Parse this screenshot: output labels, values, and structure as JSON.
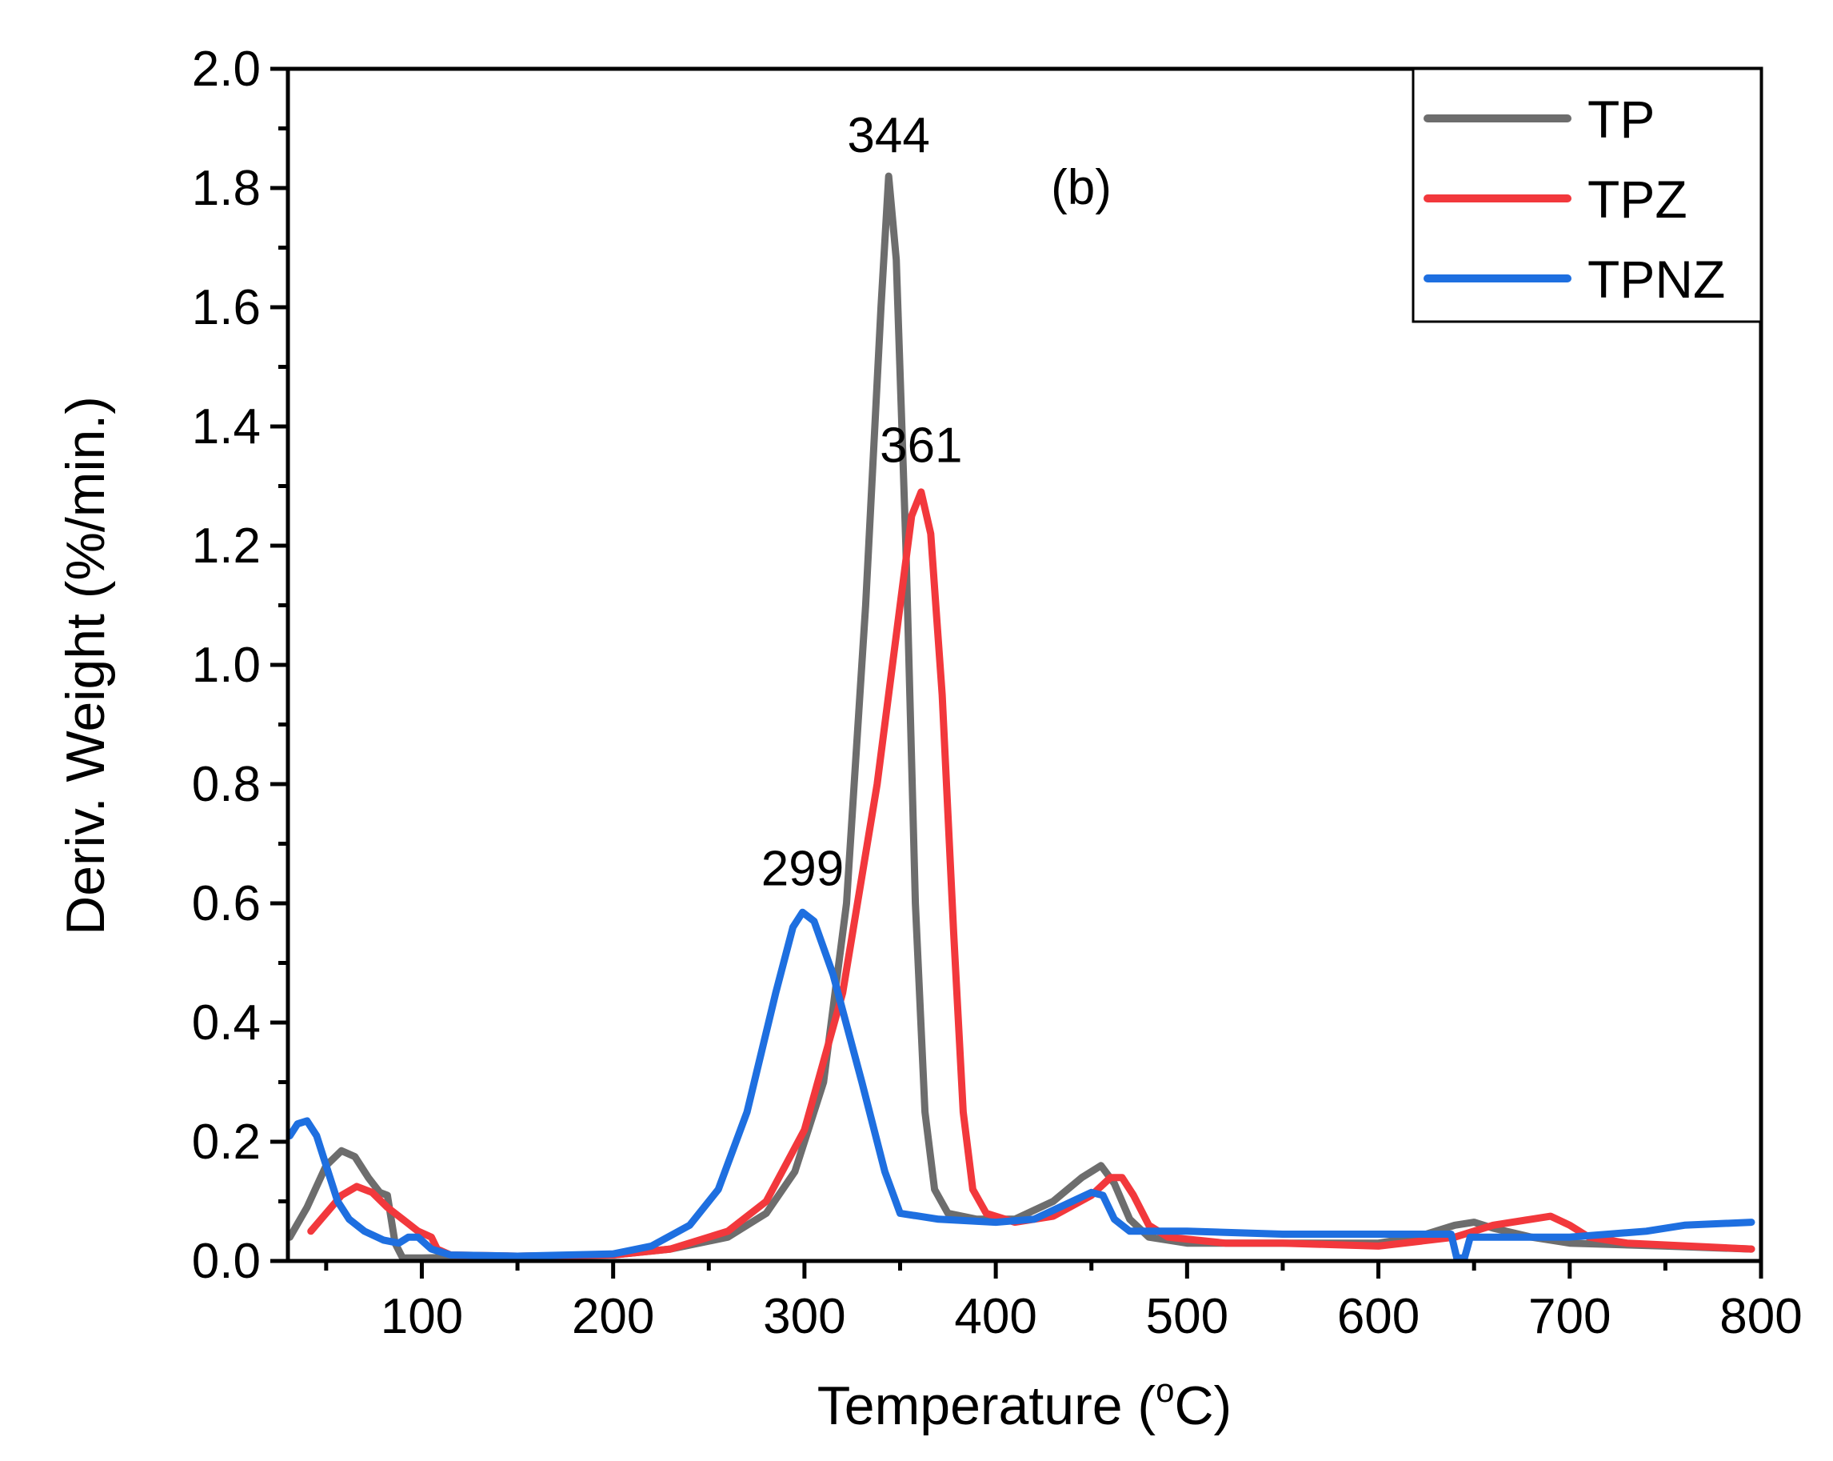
{
  "chart_data": {
    "type": "line",
    "panel_label": "(b)",
    "xlabel": "Temperature (",
    "xlabel_sup": "o",
    "xlabel_end": "C)",
    "ylabel": "Deriv. Weight (%/min.)",
    "xlim": [
      30,
      800
    ],
    "ylim": [
      0,
      2.0
    ],
    "x_ticks": [
      100,
      200,
      300,
      400,
      500,
      600,
      700,
      800
    ],
    "y_ticks": [
      0.0,
      0.2,
      0.4,
      0.6,
      0.8,
      1.0,
      1.2,
      1.4,
      1.6,
      1.8,
      2.0
    ],
    "x_tick_labels": [
      "100",
      "200",
      "300",
      "400",
      "500",
      "600",
      "700",
      "800"
    ],
    "y_tick_labels": [
      "0.0",
      "0.2",
      "0.4",
      "0.6",
      "0.8",
      "1.0",
      "1.2",
      "1.4",
      "1.6",
      "1.8",
      "2.0"
    ],
    "legend_position": "top-right",
    "series": [
      {
        "name": "TP",
        "color": "#6d6d6d",
        "points": [
          [
            31,
            0.04
          ],
          [
            40,
            0.09
          ],
          [
            50,
            0.16
          ],
          [
            58,
            0.185
          ],
          [
            65,
            0.175
          ],
          [
            72,
            0.14
          ],
          [
            78,
            0.115
          ],
          [
            82,
            0.11
          ],
          [
            86,
            0.03
          ],
          [
            90,
            0.005
          ],
          [
            100,
            0.005
          ],
          [
            150,
            0.008
          ],
          [
            200,
            0.01
          ],
          [
            230,
            0.02
          ],
          [
            260,
            0.04
          ],
          [
            280,
            0.08
          ],
          [
            295,
            0.15
          ],
          [
            310,
            0.3
          ],
          [
            322,
            0.6
          ],
          [
            332,
            1.1
          ],
          [
            340,
            1.6
          ],
          [
            344,
            1.82
          ],
          [
            348,
            1.68
          ],
          [
            353,
            1.2
          ],
          [
            358,
            0.6
          ],
          [
            363,
            0.25
          ],
          [
            368,
            0.12
          ],
          [
            375,
            0.08
          ],
          [
            390,
            0.07
          ],
          [
            410,
            0.07
          ],
          [
            430,
            0.1
          ],
          [
            445,
            0.14
          ],
          [
            455,
            0.16
          ],
          [
            462,
            0.13
          ],
          [
            470,
            0.07
          ],
          [
            480,
            0.04
          ],
          [
            500,
            0.03
          ],
          [
            550,
            0.03
          ],
          [
            600,
            0.03
          ],
          [
            620,
            0.04
          ],
          [
            640,
            0.06
          ],
          [
            650,
            0.065
          ],
          [
            660,
            0.055
          ],
          [
            680,
            0.04
          ],
          [
            700,
            0.03
          ],
          [
            750,
            0.025
          ],
          [
            795,
            0.02
          ]
        ]
      },
      {
        "name": "TPZ",
        "color": "#f2383c",
        "points": [
          [
            42,
            0.05
          ],
          [
            50,
            0.08
          ],
          [
            58,
            0.11
          ],
          [
            66,
            0.125
          ],
          [
            74,
            0.115
          ],
          [
            82,
            0.09
          ],
          [
            90,
            0.07
          ],
          [
            98,
            0.05
          ],
          [
            105,
            0.04
          ],
          [
            108,
            0.02
          ],
          [
            115,
            0.01
          ],
          [
            150,
            0.008
          ],
          [
            200,
            0.01
          ],
          [
            230,
            0.02
          ],
          [
            260,
            0.05
          ],
          [
            280,
            0.1
          ],
          [
            300,
            0.22
          ],
          [
            320,
            0.45
          ],
          [
            338,
            0.8
          ],
          [
            350,
            1.1
          ],
          [
            356,
            1.25
          ],
          [
            361,
            1.29
          ],
          [
            366,
            1.22
          ],
          [
            372,
            0.95
          ],
          [
            378,
            0.55
          ],
          [
            383,
            0.25
          ],
          [
            388,
            0.12
          ],
          [
            395,
            0.08
          ],
          [
            410,
            0.065
          ],
          [
            430,
            0.075
          ],
          [
            450,
            0.11
          ],
          [
            460,
            0.14
          ],
          [
            466,
            0.14
          ],
          [
            472,
            0.11
          ],
          [
            480,
            0.06
          ],
          [
            490,
            0.04
          ],
          [
            520,
            0.03
          ],
          [
            550,
            0.03
          ],
          [
            600,
            0.025
          ],
          [
            640,
            0.04
          ],
          [
            660,
            0.06
          ],
          [
            680,
            0.07
          ],
          [
            690,
            0.075
          ],
          [
            700,
            0.06
          ],
          [
            710,
            0.04
          ],
          [
            730,
            0.03
          ],
          [
            795,
            0.02
          ]
        ]
      },
      {
        "name": "TPNZ",
        "color": "#1e6fe0",
        "points": [
          [
            31,
            0.21
          ],
          [
            35,
            0.23
          ],
          [
            40,
            0.235
          ],
          [
            45,
            0.21
          ],
          [
            50,
            0.16
          ],
          [
            56,
            0.1
          ],
          [
            62,
            0.07
          ],
          [
            70,
            0.05
          ],
          [
            80,
            0.035
          ],
          [
            88,
            0.03
          ],
          [
            93,
            0.04
          ],
          [
            98,
            0.04
          ],
          [
            105,
            0.02
          ],
          [
            115,
            0.01
          ],
          [
            150,
            0.008
          ],
          [
            200,
            0.012
          ],
          [
            220,
            0.025
          ],
          [
            240,
            0.06
          ],
          [
            255,
            0.12
          ],
          [
            270,
            0.25
          ],
          [
            285,
            0.45
          ],
          [
            294,
            0.56
          ],
          [
            299,
            0.585
          ],
          [
            305,
            0.57
          ],
          [
            315,
            0.48
          ],
          [
            330,
            0.3
          ],
          [
            342,
            0.15
          ],
          [
            350,
            0.08
          ],
          [
            360,
            0.075
          ],
          [
            370,
            0.07
          ],
          [
            400,
            0.065
          ],
          [
            420,
            0.07
          ],
          [
            440,
            0.1
          ],
          [
            450,
            0.115
          ],
          [
            456,
            0.11
          ],
          [
            462,
            0.07
          ],
          [
            470,
            0.05
          ],
          [
            500,
            0.05
          ],
          [
            550,
            0.045
          ],
          [
            600,
            0.045
          ],
          [
            638,
            0.045
          ],
          [
            641,
            0.005
          ],
          [
            645,
            0.005
          ],
          [
            648,
            0.04
          ],
          [
            660,
            0.04
          ],
          [
            700,
            0.04
          ],
          [
            740,
            0.05
          ],
          [
            760,
            0.06
          ],
          [
            795,
            0.065
          ]
        ]
      }
    ],
    "annotations": [
      {
        "text": "344",
        "x": 344,
        "y": 1.82
      },
      {
        "text": "361",
        "x": 361,
        "y": 1.3
      },
      {
        "text": "299",
        "x": 299,
        "y": 0.59
      }
    ]
  }
}
